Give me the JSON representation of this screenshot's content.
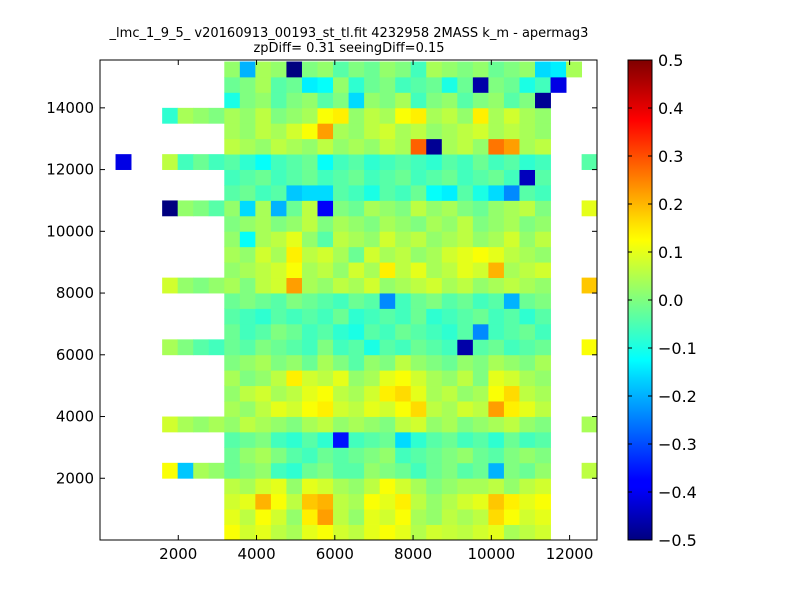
{
  "chart_data": {
    "type": "heatmap",
    "title": "_lmc_1_9_5_ v20160913_00193_st_tl.fit 4232958 2MASS k_m - apermag3",
    "subtitle": "zpDiff= 0.31 seeingDiff=0.15",
    "xlabel": "",
    "ylabel": "",
    "colormap": "jet",
    "grid": false,
    "xlim": [
      0,
      12700
    ],
    "ylim": [
      0,
      15550
    ],
    "x_ticks": [
      2000,
      4000,
      6000,
      8000,
      10000,
      12000
    ],
    "x_tick_labels": [
      "2000",
      "4000",
      "6000",
      "8000",
      "10000",
      "12000"
    ],
    "y_ticks": [
      2000,
      4000,
      6000,
      8000,
      10000,
      12000,
      14000
    ],
    "y_tick_labels": [
      "2000",
      "4000",
      "6000",
      "8000",
      "10000",
      "12000",
      "14000"
    ],
    "colorbar": {
      "min": -0.5,
      "max": 0.5,
      "ticks": [
        -0.5,
        -0.4,
        -0.3,
        -0.2,
        -0.1,
        0.0,
        0.1,
        0.2,
        0.3,
        0.4,
        0.5
      ],
      "tick_labels": [
        "−0.5",
        "−0.4",
        "−0.3",
        "−0.2",
        "−0.1",
        "0.0",
        "0.1",
        "0.2",
        "0.3",
        "0.4",
        "0.5"
      ]
    },
    "bins": {
      "x_start": 0,
      "x_width": 397,
      "n_cols": 32,
      "y_start": 0,
      "y_height": 500,
      "n_rows": 31
    },
    "rows_bottom_to_top": [
      [
        null,
        null,
        null,
        null,
        null,
        null,
        null,
        null,
        0.12,
        0.08,
        0.1,
        0.06,
        0.04,
        0.1,
        0.12,
        0.08,
        0.06,
        0.1,
        0.12,
        0.1,
        0.05,
        0.08,
        0.07,
        0.06,
        0.08,
        0.1,
        0.04,
        0.06,
        0.08,
        null,
        null,
        null
      ],
      [
        null,
        null,
        null,
        null,
        null,
        null,
        null,
        null,
        0.1,
        0.06,
        0.12,
        0.08,
        0.02,
        0.14,
        0.22,
        0.06,
        0.02,
        0.1,
        0.08,
        0.12,
        0.04,
        0.02,
        0.06,
        0.04,
        0.06,
        0.16,
        0.12,
        0.08,
        0.1,
        null,
        null,
        null
      ],
      [
        null,
        null,
        null,
        null,
        null,
        null,
        null,
        null,
        0.08,
        0.1,
        0.2,
        0.12,
        0.06,
        0.18,
        0.2,
        0.06,
        0.04,
        0.12,
        0.1,
        0.14,
        0.06,
        0.02,
        0.05,
        0.08,
        0.1,
        0.18,
        0.14,
        0.1,
        0.12,
        null,
        null,
        null
      ],
      [
        null,
        null,
        null,
        null,
        null,
        null,
        null,
        null,
        0.06,
        0.04,
        0.08,
        0.1,
        0.02,
        0.1,
        0.08,
        0.04,
        0.02,
        0.06,
        0.12,
        0.08,
        0.04,
        0.0,
        0.02,
        0.04,
        0.04,
        0.06,
        0.02,
        0.06,
        0.08,
        null,
        null,
        null
      ],
      [
        null,
        null,
        null,
        null,
        0.12,
        -0.18,
        0.04,
        0.02,
        -0.02,
        0.0,
        0.02,
        -0.06,
        -0.08,
        -0.02,
        0.0,
        -0.04,
        -0.04,
        0.02,
        0.0,
        -0.02,
        -0.06,
        -0.02,
        0.0,
        -0.04,
        -0.02,
        -0.2,
        0.0,
        -0.02,
        0.02,
        null,
        null,
        0.06
      ],
      [
        null,
        null,
        null,
        null,
        null,
        null,
        null,
        null,
        -0.02,
        0.02,
        0.04,
        0.0,
        -0.04,
        -0.06,
        -0.02,
        -0.04,
        -0.02,
        0.0,
        0.02,
        -0.06,
        -0.04,
        -0.02,
        0.0,
        0.02,
        -0.02,
        -0.04,
        0.0,
        0.02,
        0.0,
        null,
        null,
        null
      ],
      [
        null,
        null,
        null,
        null,
        null,
        null,
        null,
        null,
        -0.04,
        -0.02,
        0.0,
        -0.06,
        -0.08,
        -0.04,
        -0.08,
        -0.36,
        -0.06,
        -0.04,
        -0.02,
        -0.16,
        -0.08,
        -0.04,
        -0.02,
        -0.06,
        -0.04,
        -0.08,
        -0.02,
        -0.06,
        -0.04,
        null,
        null,
        null
      ],
      [
        null,
        null,
        null,
        null,
        0.08,
        0.04,
        0.02,
        0.04,
        0.02,
        0.06,
        0.04,
        0.02,
        0.0,
        0.04,
        0.06,
        0.02,
        0.04,
        0.02,
        0.0,
        0.06,
        0.08,
        0.02,
        0.04,
        0.0,
        0.02,
        0.04,
        0.06,
        0.02,
        0.0,
        null,
        null,
        0.04
      ],
      [
        null,
        null,
        null,
        null,
        null,
        null,
        null,
        null,
        0.04,
        0.02,
        0.06,
        0.1,
        0.08,
        0.12,
        0.14,
        0.08,
        0.06,
        0.1,
        0.08,
        0.12,
        0.16,
        0.06,
        0.04,
        0.08,
        0.06,
        0.22,
        0.14,
        0.1,
        0.06,
        null,
        null,
        null
      ],
      [
        null,
        null,
        null,
        null,
        null,
        null,
        null,
        null,
        0.02,
        0.06,
        0.08,
        0.04,
        0.06,
        0.1,
        0.12,
        0.06,
        0.04,
        0.08,
        0.14,
        0.16,
        0.1,
        0.04,
        0.06,
        0.02,
        0.04,
        0.12,
        0.16,
        0.06,
        0.04,
        null,
        null,
        null
      ],
      [
        null,
        null,
        null,
        null,
        null,
        null,
        null,
        null,
        0.04,
        0.0,
        0.02,
        0.06,
        0.14,
        0.08,
        0.06,
        0.1,
        0.02,
        0.04,
        0.1,
        0.12,
        0.08,
        0.04,
        0.02,
        0.06,
        0.0,
        0.1,
        0.08,
        0.04,
        0.02,
        null,
        null,
        null
      ],
      [
        null,
        null,
        null,
        null,
        null,
        null,
        null,
        null,
        0.0,
        0.02,
        0.04,
        0.0,
        0.02,
        -0.02,
        0.04,
        0.0,
        -0.04,
        0.02,
        0.0,
        0.06,
        0.02,
        0.0,
        -0.02,
        0.02,
        0.0,
        0.04,
        0.02,
        0.0,
        0.04,
        null,
        null,
        null
      ],
      [
        null,
        null,
        null,
        null,
        0.04,
        0.0,
        -0.04,
        -0.06,
        -0.02,
        -0.04,
        0.0,
        -0.02,
        -0.04,
        -0.06,
        0.0,
        -0.06,
        -0.04,
        -0.1,
        -0.04,
        -0.06,
        -0.02,
        -0.04,
        -0.06,
        -0.46,
        -0.04,
        -0.02,
        -0.06,
        -0.04,
        -0.02,
        null,
        null,
        0.12
      ],
      [
        null,
        null,
        null,
        null,
        null,
        null,
        null,
        null,
        -0.02,
        -0.06,
        -0.04,
        0.0,
        -0.02,
        -0.06,
        -0.04,
        -0.08,
        -0.1,
        -0.04,
        -0.06,
        -0.02,
        -0.04,
        -0.06,
        -0.08,
        -0.04,
        -0.24,
        -0.06,
        -0.04,
        -0.02,
        -0.06,
        null,
        null,
        null
      ],
      [
        null,
        null,
        null,
        null,
        null,
        null,
        null,
        null,
        -0.04,
        -0.06,
        -0.08,
        -0.04,
        -0.06,
        -0.04,
        -0.06,
        -0.02,
        -0.08,
        -0.06,
        -0.04,
        -0.06,
        -0.02,
        -0.08,
        -0.06,
        -0.04,
        -0.02,
        -0.06,
        -0.04,
        -0.08,
        -0.04,
        null,
        null,
        null
      ],
      [
        null,
        null,
        null,
        null,
        null,
        null,
        null,
        null,
        -0.02,
        0.0,
        -0.02,
        -0.04,
        0.0,
        -0.02,
        -0.04,
        -0.06,
        -0.02,
        -0.04,
        -0.24,
        -0.06,
        -0.02,
        0.0,
        -0.04,
        -0.02,
        -0.06,
        -0.04,
        -0.2,
        -0.02,
        0.0,
        null,
        null,
        null
      ],
      [
        null,
        null,
        null,
        null,
        0.08,
        0.02,
        0.0,
        0.02,
        0.04,
        0.0,
        0.06,
        0.08,
        0.22,
        0.04,
        0.02,
        0.06,
        0.04,
        0.08,
        0.02,
        0.04,
        0.06,
        0.08,
        0.04,
        0.06,
        0.02,
        0.04,
        0.06,
        0.04,
        0.02,
        null,
        null,
        0.18
      ],
      [
        null,
        null,
        null,
        null,
        null,
        null,
        null,
        null,
        0.02,
        0.04,
        0.06,
        0.08,
        0.12,
        0.04,
        0.06,
        0.02,
        0.08,
        0.04,
        0.14,
        0.06,
        0.1,
        0.04,
        0.06,
        0.1,
        0.08,
        0.2,
        0.04,
        0.06,
        0.08,
        null,
        null,
        null
      ],
      [
        null,
        null,
        null,
        null,
        null,
        null,
        null,
        null,
        0.04,
        0.02,
        0.08,
        0.04,
        0.14,
        0.06,
        0.08,
        0.04,
        -0.02,
        0.08,
        0.04,
        0.06,
        0.02,
        0.04,
        0.08,
        0.1,
        0.12,
        0.1,
        0.06,
        0.04,
        0.02,
        null,
        null,
        null
      ],
      [
        null,
        null,
        null,
        null,
        null,
        null,
        null,
        null,
        0.02,
        -0.12,
        0.04,
        0.06,
        0.1,
        0.02,
        -0.04,
        0.06,
        0.04,
        0.02,
        0.08,
        0.04,
        0.06,
        0.02,
        0.04,
        0.06,
        0.02,
        0.04,
        0.08,
        0.02,
        0.06,
        null,
        null,
        null
      ],
      [
        null,
        null,
        null,
        null,
        null,
        null,
        null,
        null,
        0.0,
        0.02,
        0.04,
        0.0,
        0.02,
        0.06,
        0.0,
        0.04,
        0.02,
        0.0,
        0.04,
        0.02,
        0.0,
        0.04,
        0.02,
        0.06,
        0.0,
        0.02,
        0.04,
        0.0,
        0.02,
        null,
        null,
        null
      ],
      [
        null,
        null,
        null,
        null,
        -0.5,
        0.02,
        0.0,
        -0.04,
        0.02,
        -0.16,
        0.04,
        -0.2,
        -0.02,
        0.06,
        -0.38,
        0.0,
        -0.02,
        0.04,
        0.02,
        0.0,
        0.06,
        0.02,
        0.04,
        0.0,
        -0.02,
        0.02,
        0.04,
        0.06,
        0.0,
        null,
        null,
        0.1
      ],
      [
        null,
        null,
        null,
        null,
        null,
        null,
        null,
        null,
        -0.04,
        -0.02,
        -0.06,
        -0.04,
        -0.18,
        -0.16,
        -0.16,
        -0.04,
        -0.06,
        -0.1,
        -0.04,
        -0.06,
        -0.02,
        -0.12,
        -0.14,
        -0.04,
        -0.1,
        -0.16,
        -0.24,
        -0.04,
        -0.06,
        null,
        null,
        null
      ],
      [
        null,
        null,
        null,
        null,
        null,
        null,
        null,
        null,
        -0.06,
        -0.04,
        -0.02,
        -0.06,
        -0.04,
        -0.02,
        -0.06,
        -0.04,
        -0.02,
        -0.06,
        -0.04,
        -0.02,
        -0.06,
        -0.04,
        -0.02,
        -0.06,
        -0.04,
        -0.02,
        -0.06,
        -0.44,
        -0.04,
        null,
        null,
        null
      ],
      [
        null,
        -0.4,
        null,
        null,
        0.06,
        -0.06,
        -0.02,
        -0.06,
        -0.04,
        -0.08,
        -0.12,
        -0.06,
        -0.04,
        -0.02,
        -0.12,
        -0.06,
        -0.04,
        -0.08,
        -0.06,
        -0.04,
        -0.06,
        -0.08,
        -0.04,
        -0.06,
        -0.02,
        -0.06,
        -0.04,
        -0.08,
        -0.06,
        null,
        null,
        -0.04
      ],
      [
        null,
        null,
        null,
        null,
        null,
        null,
        null,
        null,
        0.06,
        0.04,
        0.02,
        0.06,
        0.04,
        0.02,
        0.06,
        0.02,
        0.04,
        0.02,
        0.06,
        0.04,
        0.28,
        -0.48,
        0.04,
        0.06,
        0.02,
        0.26,
        0.22,
        0.04,
        0.06,
        null,
        null,
        null
      ],
      [
        null,
        null,
        null,
        null,
        null,
        null,
        null,
        null,
        0.04,
        0.02,
        0.06,
        0.04,
        0.08,
        0.12,
        0.22,
        0.04,
        0.02,
        0.06,
        0.08,
        0.04,
        0.06,
        0.02,
        0.04,
        0.06,
        0.08,
        0.04,
        0.06,
        0.04,
        0.02,
        null,
        null,
        null
      ],
      [
        null,
        null,
        null,
        null,
        -0.08,
        0.04,
        0.02,
        0.0,
        0.04,
        0.02,
        0.06,
        0.0,
        0.02,
        0.04,
        0.12,
        0.14,
        0.02,
        0.06,
        0.04,
        0.12,
        0.14,
        0.04,
        0.06,
        0.02,
        0.14,
        0.04,
        0.08,
        0.04,
        0.02,
        null,
        null,
        null
      ],
      [
        null,
        null,
        null,
        null,
        null,
        null,
        null,
        null,
        -0.1,
        0.0,
        0.02,
        -0.04,
        0.0,
        0.02,
        -0.04,
        0.0,
        -0.16,
        0.02,
        0.0,
        0.04,
        -0.06,
        0.0,
        0.02,
        -0.04,
        0.0,
        0.02,
        -0.04,
        0.0,
        -0.48,
        null,
        null,
        null
      ],
      [
        null,
        null,
        null,
        null,
        null,
        null,
        null,
        null,
        -0.02,
        0.0,
        0.04,
        -0.04,
        -0.02,
        -0.14,
        -0.12,
        0.02,
        -0.08,
        -0.02,
        0.0,
        -0.06,
        -0.04,
        -0.02,
        -0.1,
        -0.02,
        -0.46,
        0.0,
        -0.02,
        -0.1,
        -0.06,
        -0.4,
        null,
        null
      ],
      [
        null,
        null,
        null,
        null,
        null,
        null,
        null,
        null,
        0.02,
        -0.2,
        0.04,
        0.02,
        -0.5,
        0.0,
        0.02,
        -0.04,
        0.0,
        -0.02,
        0.02,
        0.0,
        -0.06,
        0.04,
        0.02,
        0.0,
        0.02,
        -0.02,
        0.0,
        0.02,
        -0.16,
        -0.14,
        0.04,
        null
      ]
    ]
  }
}
